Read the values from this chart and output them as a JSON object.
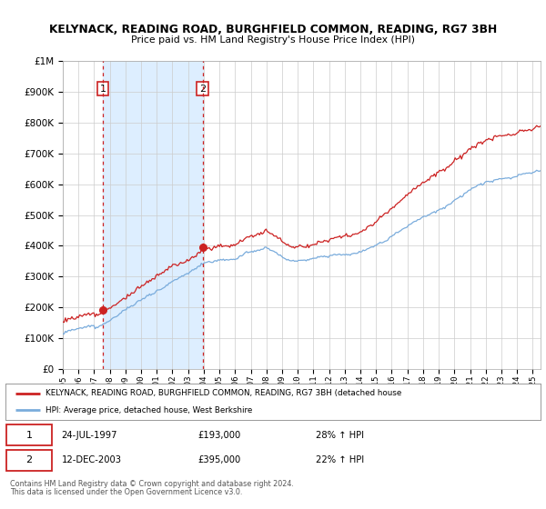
{
  "title": "KELYNACK, READING ROAD, BURGHFIELD COMMON, READING, RG7 3BH",
  "subtitle": "Price paid vs. HM Land Registry's House Price Index (HPI)",
  "sale1_date": "24-JUL-1997",
  "sale1_price": 193000,
  "sale1_hpi": "28% ↑ HPI",
  "sale1_x": 1997.55,
  "sale2_date": "12-DEC-2003",
  "sale2_price": 395000,
  "sale2_hpi": "22% ↑ HPI",
  "sale2_x": 2003.93,
  "hpi_line_color": "#7aacdc",
  "price_line_color": "#cc2222",
  "sale_dot_color": "#cc2222",
  "shaded_region_color": "#ddeeff",
  "grid_color": "#cccccc",
  "background_color": "#ffffff",
  "legend_label_red": "KELYNACK, READING ROAD, BURGHFIELD COMMON, READING, RG7 3BH (detached house",
  "legend_label_blue": "HPI: Average price, detached house, West Berkshire",
  "footer1": "Contains HM Land Registry data © Crown copyright and database right 2024.",
  "footer2": "This data is licensed under the Open Government Licence v3.0.",
  "xmin": 1995.0,
  "xmax": 2025.5,
  "ymin": 0,
  "ymax": 1000000,
  "yticks": [
    0,
    100000,
    200000,
    300000,
    400000,
    500000,
    600000,
    700000,
    800000,
    900000,
    1000000
  ],
  "xtick_years": [
    1995,
    1996,
    1997,
    1998,
    1999,
    2000,
    2001,
    2002,
    2003,
    2004,
    2005,
    2006,
    2007,
    2008,
    2009,
    2010,
    2011,
    2012,
    2013,
    2014,
    2015,
    2016,
    2017,
    2018,
    2019,
    2020,
    2021,
    2022,
    2023,
    2024,
    2025
  ]
}
